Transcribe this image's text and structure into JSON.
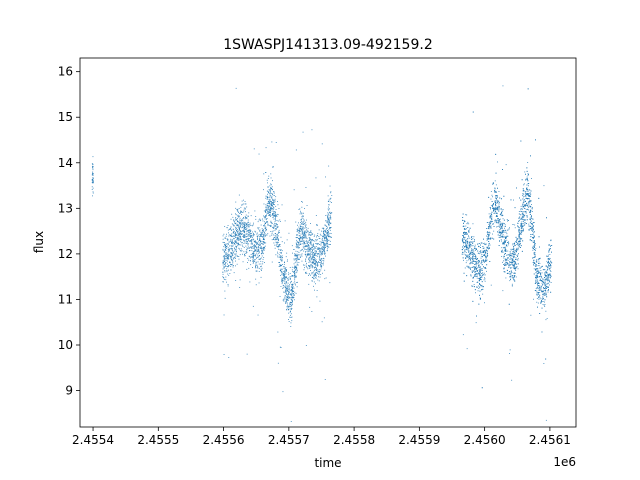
{
  "chart_data": {
    "type": "scatter",
    "title": "1SWASPJ141313.09-492159.2",
    "xlabel": "time",
    "ylabel": "flux",
    "x_offset_label": "1e6",
    "xlim": [
      2.45538,
      2.45614
    ],
    "ylim": [
      8.2,
      16.3
    ],
    "x_ticks": [
      2.4554,
      2.4555,
      2.4556,
      2.4557,
      2.4558,
      2.4559,
      2.456,
      2.4561
    ],
    "x_tick_labels": [
      "2.4554",
      "2.4555",
      "2.4556",
      "2.4557",
      "2.4558",
      "2.4559",
      "2.4560",
      "2.4561"
    ],
    "y_ticks": [
      9,
      10,
      11,
      12,
      13,
      14,
      15,
      16
    ],
    "y_tick_labels": [
      "9",
      "10",
      "11",
      "12",
      "13",
      "14",
      "15",
      "16"
    ],
    "grid": false,
    "marker_color": "#1f77b4",
    "series": [
      {
        "name": "",
        "x_unit_scale": 1000000,
        "clusters": [
          {
            "x": [
              2.455398,
              2.4554
            ],
            "y_range": [
              13.2,
              14.2
            ],
            "center": [
              [
                2.455398,
                13.7
              ],
              [
                2.4554,
                13.7
              ]
            ]
          },
          {
            "x": [
              2.455598,
              2.455765
            ],
            "profile": [
              [
                2.455598,
                11.9
              ],
              [
                2.45561,
                12.1
              ],
              [
                2.45562,
                12.5
              ],
              [
                2.45563,
                12.6
              ],
              [
                2.45564,
                12.4
              ],
              [
                2.45565,
                12.0
              ],
              [
                2.45566,
                12.3
              ],
              [
                2.455668,
                13.2
              ],
              [
                2.455675,
                13.0
              ],
              [
                2.455682,
                12.4
              ],
              [
                2.45569,
                11.6
              ],
              [
                2.455698,
                11.2
              ],
              [
                2.455703,
                11.0
              ],
              [
                2.45571,
                11.9
              ],
              [
                2.455718,
                12.6
              ],
              [
                2.455728,
                12.1
              ],
              [
                2.455738,
                11.9
              ],
              [
                2.455748,
                12.0
              ],
              [
                2.455756,
                12.4
              ],
              [
                2.455765,
                12.9
              ]
            ]
          },
          {
            "x": [
              2.455965,
              2.456102
            ],
            "profile": [
              [
                2.455965,
                12.4
              ],
              [
                2.455975,
                12.2
              ],
              [
                2.455985,
                11.8
              ],
              [
                2.455993,
                11.6
              ],
              [
                2.456,
                12.0
              ],
              [
                2.456008,
                12.6
              ],
              [
                2.456015,
                13.2
              ],
              [
                2.456022,
                12.8
              ],
              [
                2.45603,
                12.2
              ],
              [
                2.456038,
                11.8
              ],
              [
                2.456045,
                11.9
              ],
              [
                2.456052,
                12.4
              ],
              [
                2.45606,
                13.1
              ],
              [
                2.456066,
                13.4
              ],
              [
                2.456072,
                12.6
              ],
              [
                2.456078,
                11.6
              ],
              [
                2.456085,
                11.4
              ],
              [
                2.45609,
                11.2
              ],
              [
                2.456096,
                11.6
              ],
              [
                2.456102,
                11.8
              ]
            ]
          }
        ]
      }
    ]
  }
}
